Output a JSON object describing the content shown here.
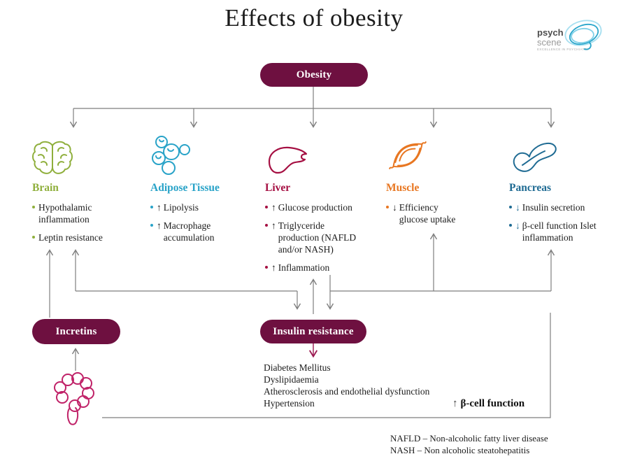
{
  "title": "Effects of obesity",
  "logo": {
    "line1": "psych",
    "line2": "scene",
    "tagline": "EXCELLENCE IN PSYCHIATRY"
  },
  "nodes": {
    "obesity": "Obesity",
    "incretins": "Incretins",
    "insulin_resistance": "Insulin resistance"
  },
  "organs": [
    {
      "id": "brain",
      "label": "Brain",
      "color": "#8faf3c",
      "bullets": [
        {
          "arrow": "",
          "arrow_color": "",
          "text": "Hypothalamic inflammation"
        },
        {
          "arrow": "",
          "arrow_color": "",
          "text": "Leptin resistance"
        }
      ]
    },
    {
      "id": "adipose-tissue",
      "label": "Adipose Tissue",
      "color": "#29a3c8",
      "bullets": [
        {
          "arrow": "↑",
          "arrow_color": "#1c1c1c",
          "text": "Lipolysis"
        },
        {
          "arrow": "↑",
          "arrow_color": "#1c1c1c",
          "text": "Macrophage accumulation"
        }
      ]
    },
    {
      "id": "liver",
      "label": "Liver",
      "color": "#a50f42",
      "bullets": [
        {
          "arrow": "↑",
          "arrow_color": "#1c1c1c",
          "text": "Glucose production"
        },
        {
          "arrow": "↑",
          "arrow_color": "#1c1c1c",
          "text": "Triglyceride production (NAFLD and/or NASH)"
        },
        {
          "arrow": "↑",
          "arrow_color": "#1c1c1c",
          "text": "Inflammation"
        }
      ]
    },
    {
      "id": "muscle",
      "label": "Muscle",
      "color": "#e87722",
      "bullets": [
        {
          "arrow": "↓",
          "arrow_color": "#1c1c1c",
          "text": "Efficiency glucose uptake"
        }
      ]
    },
    {
      "id": "pancreas",
      "label": "Pancreas",
      "color": "#1f6b93",
      "bullets": [
        {
          "arrow": "↓",
          "arrow_color": "#1f6b93",
          "text": "Insulin secretion"
        },
        {
          "arrow": "↓",
          "arrow_color": "#1f6b93",
          "text": "β-cell function Islet inflammation"
        }
      ]
    }
  ],
  "consequences": [
    "Diabetes Mellitus",
    "Dyslipidaemia",
    "Atherosclerosis and endothelial dysfunction",
    "Hypertension"
  ],
  "beta_cell_note": {
    "arrow": "↑",
    "text": "β-cell function"
  },
  "footnotes": [
    "NAFLD – Non-alcoholic fatty liver disease",
    "NASH – Non alcoholic steatohepatitis"
  ],
  "colors": {
    "pill": "#6e1040",
    "line": "#7e7e7e",
    "feedback_arrow": "#9c1b52",
    "intestine": "#c02268"
  }
}
